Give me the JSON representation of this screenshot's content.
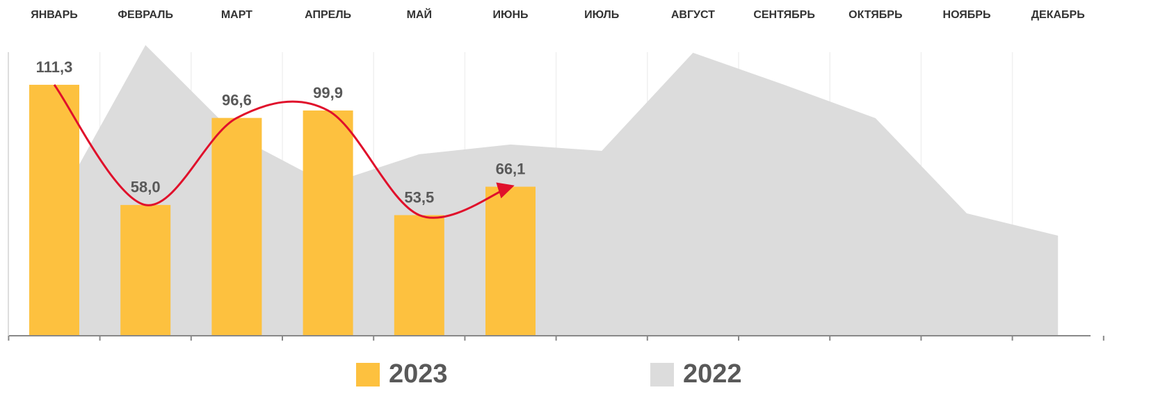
{
  "chart_data": {
    "type": "bar",
    "categories": [
      "ЯНВАРЬ",
      "ФЕВРАЛЬ",
      "МАРТ",
      "АПРЕЛЬ",
      "МАЙ",
      "ИЮНЬ",
      "ИЮЛЬ",
      "АВГУСТ",
      "СЕНТЯБРЬ",
      "ОКТЯБРЬ",
      "НОЯБРЬ",
      "ДЕКАБРЬ"
    ],
    "series": [
      {
        "name": "2023",
        "type": "bar",
        "color": "#fdc13f",
        "values": [
          111.3,
          58.0,
          96.6,
          99.9,
          53.5,
          66.1,
          null,
          null,
          null,
          null,
          null,
          null
        ],
        "value_labels": [
          "111,3",
          "58,0",
          "96,6",
          "99,9",
          "53,5",
          "66,1",
          null,
          null,
          null,
          null,
          null,
          null
        ]
      },
      {
        "name": "2022",
        "type": "area",
        "color": "#dcdcdc",
        "values": [
          56,
          128.9,
          88.5,
          67.2,
          80.5,
          84.8,
          82,
          125.5,
          111.3,
          96.5,
          54.3,
          44.4
        ]
      }
    ],
    "ylim": [
      0,
      130
    ],
    "trend_color": "#e0102b"
  }
}
